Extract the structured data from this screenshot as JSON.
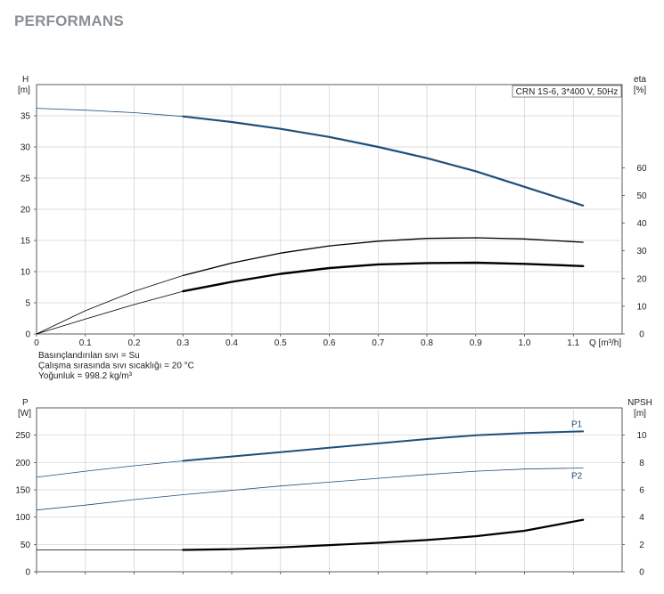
{
  "page": {
    "title": "PERFORMANS"
  },
  "chart_data": [
    {
      "type": "line",
      "legend_box": "CRN 1S-6, 3*400 V, 50Hz",
      "x_axis": {
        "label": "Q [m³/h]",
        "range": [
          0,
          1.2
        ],
        "ticks": [
          0,
          0.1,
          0.2,
          0.3,
          0.4,
          0.5,
          0.6,
          0.7,
          0.8,
          0.9,
          1.0,
          1.1
        ],
        "tick_labels": [
          "0",
          "0.1",
          "0.2",
          "0.3",
          "0.4",
          "0.5",
          "0.6",
          "0.7",
          "0.8",
          "0.9",
          "1.0",
          "1.1"
        ]
      },
      "y_left": {
        "label_top": "H",
        "label_unit": "[m]",
        "range": [
          0,
          40
        ],
        "ticks": [
          0,
          5,
          10,
          15,
          20,
          25,
          30,
          35
        ],
        "tick_labels": [
          "0",
          "5",
          "10",
          "15",
          "20",
          "25",
          "30",
          "35"
        ]
      },
      "y_right": {
        "label_top": "eta",
        "label_unit": "[%]",
        "range": [
          0,
          90
        ],
        "ticks": [
          0,
          10,
          20,
          30,
          40,
          50,
          60
        ],
        "tick_labels": [
          "0",
          "10",
          "20",
          "30",
          "40",
          "50",
          "60"
        ]
      },
      "grid": true,
      "series": [
        {
          "key": "head",
          "axis": "left",
          "color": "#1f4f7a",
          "width_thin": 0.8,
          "width_thick": 2.2,
          "x": [
            0,
            0.1,
            0.2,
            0.3,
            0.4,
            0.5,
            0.6,
            0.7,
            0.8,
            0.9,
            1.0,
            1.12
          ],
          "y": [
            36.2,
            35.9,
            35.5,
            34.9,
            34.0,
            32.9,
            31.6,
            30.0,
            28.2,
            26.1,
            23.6,
            20.6
          ]
        },
        {
          "key": "eta_pump",
          "axis": "right",
          "color": "#000000",
          "width_thin": 0.8,
          "width_thick": 1.3,
          "x": [
            0,
            0.1,
            0.2,
            0.3,
            0.4,
            0.5,
            0.6,
            0.7,
            0.8,
            0.9,
            1.0,
            1.12
          ],
          "y": [
            0,
            8.4,
            15.4,
            21.1,
            25.6,
            29.2,
            31.8,
            33.5,
            34.5,
            34.7,
            34.3,
            33.1
          ]
        },
        {
          "key": "eta_total",
          "axis": "right",
          "color": "#000000",
          "width_thin": 0.8,
          "width_thick": 2.4,
          "x": [
            0,
            0.1,
            0.2,
            0.3,
            0.4,
            0.5,
            0.6,
            0.7,
            0.8,
            0.9,
            1.0,
            1.12
          ],
          "y": [
            0,
            5.4,
            10.6,
            15.4,
            18.8,
            21.7,
            23.8,
            25.1,
            25.6,
            25.7,
            25.3,
            24.5
          ]
        }
      ]
    },
    {
      "type": "line",
      "x_axis": {
        "range": [
          0,
          1.2
        ],
        "ticks": [
          0,
          0.1,
          0.2,
          0.3,
          0.4,
          0.5,
          0.6,
          0.7,
          0.8,
          0.9,
          1.0,
          1.1
        ]
      },
      "y_left": {
        "label_top": "P",
        "label_unit": "[W]",
        "range": [
          0,
          300
        ],
        "ticks": [
          0,
          50,
          100,
          150,
          200,
          250
        ],
        "tick_labels": [
          "0",
          "50",
          "100",
          "150",
          "200",
          "250"
        ]
      },
      "y_right": {
        "label_top": "NPSH",
        "label_unit": "[m]",
        "range": [
          0,
          12
        ],
        "ticks": [
          0,
          2,
          4,
          6,
          8,
          10
        ],
        "tick_labels": [
          "0",
          "2",
          "4",
          "6",
          "8",
          "10"
        ]
      },
      "grid": true,
      "series": [
        {
          "key": "p1",
          "name": "P1",
          "axis": "left",
          "color": "#1f4f7a",
          "width_thin": 0.8,
          "width_thick": 2.0,
          "x": [
            0,
            0.1,
            0.2,
            0.3,
            0.4,
            0.5,
            0.6,
            0.7,
            0.8,
            0.9,
            1.0,
            1.12
          ],
          "y": [
            173,
            184,
            194,
            203,
            211,
            219,
            227,
            235,
            243,
            250,
            254,
            257
          ]
        },
        {
          "key": "p2",
          "name": "P2",
          "axis": "left",
          "color": "#1f4f7a",
          "width_thin": 0.8,
          "width_thick": 0.8,
          "x": [
            0,
            0.1,
            0.2,
            0.3,
            0.4,
            0.5,
            0.6,
            0.7,
            0.8,
            0.9,
            1.0,
            1.12
          ],
          "y": [
            113,
            122,
            132,
            141,
            149,
            157,
            164,
            171,
            178,
            184,
            188,
            190
          ]
        },
        {
          "key": "npsh",
          "axis": "right",
          "color": "#000000",
          "width_thin": 0.8,
          "width_thick": 2.2,
          "x": [
            0,
            0.1,
            0.2,
            0.3,
            0.4,
            0.5,
            0.6,
            0.7,
            0.8,
            0.9,
            1.0,
            1.12
          ],
          "y": [
            1.6,
            1.6,
            1.6,
            1.6,
            1.65,
            1.78,
            1.95,
            2.12,
            2.32,
            2.6,
            3.0,
            3.8
          ]
        }
      ]
    }
  ],
  "fluid_info": [
    "Basınçlandırılan sıvı = Su",
    "Çalışma sırasında sıvı sıcaklığı = 20 °C",
    "Yoğunluk = 998.2 kg/m³"
  ]
}
